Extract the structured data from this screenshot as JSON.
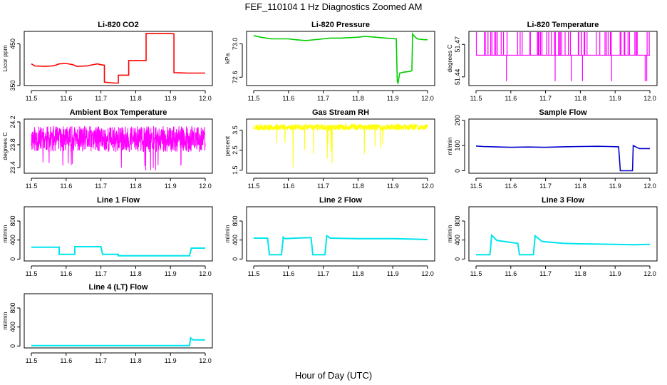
{
  "title": "FEF_110104  1 Hz Diagnostics Zoomed AM",
  "xlabel": "Hour of Day (UTC)",
  "chart_data": [
    {
      "type": "line",
      "title": "Li-820 CO2",
      "ylabel": "Licor ppm",
      "color": "#ff0000",
      "xlim": [
        11.5,
        12.0
      ],
      "ylim": [
        350,
        480
      ],
      "yticks": [
        "350",
        "450"
      ],
      "yticks_values": [
        350,
        450
      ],
      "xticks": [
        "11.5",
        "11.6",
        "11.7",
        "11.8",
        "11.9",
        "12.0"
      ],
      "series": [
        {
          "points": [
            [
              11.5,
              402
            ],
            [
              11.51,
              397
            ],
            [
              11.54,
              396
            ],
            [
              11.56,
              397
            ],
            [
              11.57,
              399
            ],
            [
              11.58,
              402
            ],
            [
              11.6,
              403
            ],
            [
              11.62,
              400
            ],
            [
              11.63,
              396
            ],
            [
              11.66,
              397
            ],
            [
              11.67,
              399
            ],
            [
              11.69,
              402
            ],
            [
              11.7,
              400
            ],
            [
              11.71,
              399
            ],
            [
              11.71,
              358
            ],
            [
              11.74,
              356
            ],
            [
              11.75,
              356
            ],
            [
              11.75,
              375
            ],
            [
              11.78,
              375
            ],
            [
              11.78,
              410
            ],
            [
              11.83,
              410
            ],
            [
              11.83,
              475
            ],
            [
              11.9,
              475
            ],
            [
              11.91,
              474
            ],
            [
              11.91,
              381
            ],
            [
              11.95,
              380
            ],
            [
              12.0,
              380
            ]
          ]
        }
      ]
    },
    {
      "type": "line",
      "title": "Li-820 Pressure",
      "ylabel": "kPa",
      "color": "#00cc00",
      "xlim": [
        11.5,
        12.0
      ],
      "ylim": [
        72.5,
        73.15
      ],
      "yticks": [
        "72.6",
        "73.0"
      ],
      "yticks_values": [
        72.6,
        73.0
      ],
      "xticks": [
        "11.5",
        "11.6",
        "11.7",
        "11.8",
        "11.9",
        "12.0"
      ],
      "series": [
        {
          "points": [
            [
              11.5,
              73.1
            ],
            [
              11.52,
              73.08
            ],
            [
              11.55,
              73.06
            ],
            [
              11.6,
              73.06
            ],
            [
              11.62,
              73.05
            ],
            [
              11.65,
              73.04
            ],
            [
              11.7,
              73.06
            ],
            [
              11.72,
              73.07
            ],
            [
              11.75,
              73.07
            ],
            [
              11.8,
              73.08
            ],
            [
              11.82,
              73.09
            ],
            [
              11.85,
              73.08
            ],
            [
              11.88,
              73.07
            ],
            [
              11.91,
              73.06
            ],
            [
              11.913,
              72.55
            ],
            [
              11.915,
              72.53
            ],
            [
              11.92,
              72.65
            ],
            [
              11.93,
              72.66
            ],
            [
              11.95,
              72.67
            ],
            [
              11.955,
              72.68
            ],
            [
              11.957,
              73.12
            ],
            [
              11.96,
              73.1
            ],
            [
              11.97,
              73.06
            ],
            [
              11.99,
              73.05
            ],
            [
              12.0,
              73.05
            ]
          ]
        }
      ]
    },
    {
      "type": "line",
      "title": "Li-820 Temperature",
      "ylabel": "degrees C",
      "color": "#ff00ff",
      "xlim": [
        11.5,
        12.0
      ],
      "ylim": [
        51.432,
        51.482
      ],
      "yticks": [
        "51.44",
        "51.47"
      ],
      "yticks_values": [
        51.44,
        51.47
      ],
      "xticks": [
        "11.5",
        "11.6",
        "11.7",
        "11.8",
        "11.9",
        "12.0"
      ],
      "series": [
        {
          "points": [
            [
              11.5,
              51.46
            ],
            [
              12.0,
              51.46
            ]
          ]
        }
      ]
    },
    {
      "type": "line",
      "title": "Ambient Box Temperature",
      "ylabel": "degrees C",
      "color": "#ff00ff",
      "xlim": [
        11.5,
        12.0
      ],
      "ylim": [
        23.3,
        24.25
      ],
      "yticks": [
        "23.4",
        "23.8",
        "24.2"
      ],
      "yticks_values": [
        23.4,
        23.8,
        24.2
      ],
      "xticks": [
        "11.5",
        "11.6",
        "11.7",
        "11.8",
        "11.9",
        "12.0"
      ],
      "series": [
        {
          "points": [
            [
              11.5,
              23.9
            ],
            [
              12.0,
              23.9
            ]
          ]
        }
      ]
    },
    {
      "type": "line",
      "title": "Gas Stream RH",
      "ylabel": "percent",
      "color": "#ffff00",
      "xlim": [
        11.5,
        12.0
      ],
      "ylim": [
        1.35,
        4.05
      ],
      "yticks": [
        "1.5",
        "2.5",
        "3.5"
      ],
      "yticks_values": [
        1.5,
        2.5,
        3.5
      ],
      "xticks": [
        "11.5",
        "11.6",
        "11.7",
        "11.8",
        "11.9",
        "12.0"
      ],
      "series": [
        {
          "points": [
            [
              11.5,
              3.6
            ],
            [
              12.0,
              3.6
            ]
          ]
        }
      ]
    },
    {
      "type": "line",
      "title": "Sample Flow",
      "ylabel": "ml/min",
      "color": "#0000cc",
      "xlim": [
        11.5,
        12.0
      ],
      "ylim": [
        -10,
        205
      ],
      "yticks": [
        "0",
        "100",
        "200"
      ],
      "yticks_values": [
        0,
        100,
        200
      ],
      "xticks": [
        "11.5",
        "11.6",
        "11.7",
        "11.8",
        "11.9",
        "12.0"
      ],
      "series": [
        {
          "points": [
            [
              11.5,
              98
            ],
            [
              11.52,
              96
            ],
            [
              11.55,
              95
            ],
            [
              11.6,
              93
            ],
            [
              11.65,
              94
            ],
            [
              11.7,
              93
            ],
            [
              11.75,
              95
            ],
            [
              11.8,
              96
            ],
            [
              11.85,
              97
            ],
            [
              11.88,
              96
            ],
            [
              11.91,
              95
            ],
            [
              11.915,
              0
            ],
            [
              11.95,
              0
            ],
            [
              11.952,
              100
            ],
            [
              11.96,
              94
            ],
            [
              11.97,
              88
            ],
            [
              12.0,
              88
            ]
          ]
        }
      ]
    },
    {
      "type": "line",
      "title": "Line 1 Flow",
      "ylabel": "ml/min",
      "color": "#00e5ee",
      "xlim": [
        11.5,
        12.0
      ],
      "ylim": [
        -40,
        1100
      ],
      "yticks": [
        "0",
        "400",
        "800"
      ],
      "yticks_values": [
        0,
        400,
        800
      ],
      "xticks": [
        "11.5",
        "11.6",
        "11.7",
        "11.8",
        "11.9",
        "12.0"
      ],
      "series": [
        {
          "points": [
            [
              11.5,
              250
            ],
            [
              11.58,
              250
            ],
            [
              11.58,
              100
            ],
            [
              11.625,
              100
            ],
            [
              11.625,
              260
            ],
            [
              11.7,
              260
            ],
            [
              11.705,
              100
            ],
            [
              11.75,
              100
            ],
            [
              11.75,
              70
            ],
            [
              11.85,
              70
            ],
            [
              11.9,
              70
            ],
            [
              11.955,
              70
            ],
            [
              11.96,
              230
            ],
            [
              12.0,
              230
            ]
          ]
        }
      ]
    },
    {
      "type": "line",
      "title": "Line 2 Flow",
      "ylabel": "ml/min",
      "color": "#00e5ee",
      "xlim": [
        11.5,
        12.0
      ],
      "ylim": [
        -40,
        1100
      ],
      "yticks": [
        "0",
        "400",
        "800"
      ],
      "yticks_values": [
        0,
        400,
        800
      ],
      "xticks": [
        "11.5",
        "11.6",
        "11.7",
        "11.8",
        "11.9",
        "12.0"
      ],
      "series": [
        {
          "points": [
            [
              11.5,
              440
            ],
            [
              11.54,
              440
            ],
            [
              11.545,
              90
            ],
            [
              11.58,
              90
            ],
            [
              11.585,
              460
            ],
            [
              11.59,
              430
            ],
            [
              11.62,
              440
            ],
            [
              11.665,
              450
            ],
            [
              11.67,
              90
            ],
            [
              11.705,
              90
            ],
            [
              11.71,
              490
            ],
            [
              11.72,
              440
            ],
            [
              11.8,
              430
            ],
            [
              11.9,
              430
            ],
            [
              11.95,
              420
            ],
            [
              12.0,
              410
            ]
          ]
        }
      ]
    },
    {
      "type": "line",
      "title": "Line 3 Flow",
      "ylabel": "ml/min",
      "color": "#00e5ee",
      "xlim": [
        11.5,
        12.0
      ],
      "ylim": [
        -40,
        1100
      ],
      "yticks": [
        "0",
        "400",
        "800"
      ],
      "yticks_values": [
        0,
        400,
        800
      ],
      "xticks": [
        "11.5",
        "11.6",
        "11.7",
        "11.8",
        "11.9",
        "12.0"
      ],
      "series": [
        {
          "points": [
            [
              11.5,
              90
            ],
            [
              11.54,
              90
            ],
            [
              11.545,
              500
            ],
            [
              11.56,
              390
            ],
            [
              11.6,
              350
            ],
            [
              11.62,
              330
            ],
            [
              11.625,
              90
            ],
            [
              11.665,
              90
            ],
            [
              11.67,
              490
            ],
            [
              11.69,
              370
            ],
            [
              11.75,
              330
            ],
            [
              11.8,
              320
            ],
            [
              11.9,
              310
            ],
            [
              11.95,
              300
            ],
            [
              12.0,
              310
            ]
          ]
        }
      ]
    },
    {
      "type": "line",
      "title": "Line 4 (LT) Flow",
      "ylabel": "ml/min",
      "color": "#00e5ee",
      "xlim": [
        11.5,
        12.0
      ],
      "ylim": [
        -40,
        1100
      ],
      "yticks": [
        "0",
        "400",
        "800"
      ],
      "yticks_values": [
        0,
        400,
        800
      ],
      "xticks": [
        "11.5",
        "11.6",
        "11.7",
        "11.8",
        "11.9",
        "12.0"
      ],
      "series": [
        {
          "points": [
            [
              11.5,
              10
            ],
            [
              11.6,
              10
            ],
            [
              11.7,
              10
            ],
            [
              11.8,
              10
            ],
            [
              11.9,
              10
            ],
            [
              11.955,
              10
            ],
            [
              11.958,
              170
            ],
            [
              11.965,
              130
            ],
            [
              12.0,
              130
            ]
          ]
        }
      ]
    }
  ]
}
